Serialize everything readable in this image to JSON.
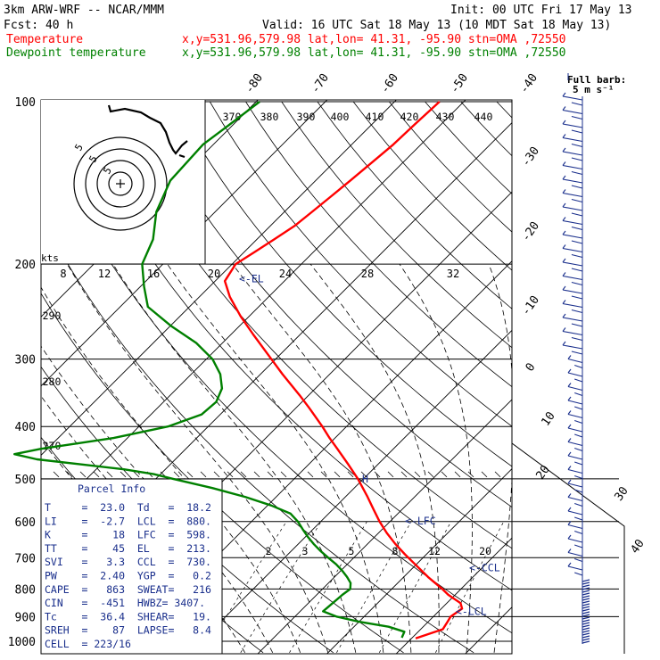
{
  "header": {
    "model": "3km ARW-WRF -- NCAR/MMM",
    "init": "Init: 00 UTC Fri 17 May 13",
    "fcst": "Fcst:   40 h",
    "valid": "Valid: 16 UTC Sat 18 May 13 (10 MDT Sat 18 May 13)"
  },
  "legend": [
    {
      "label": "Temperature",
      "location": "x,y=531.96,579.98   lat,lon= 41.31, -95.90   stn=OMA ,72550",
      "color": "#ff0000"
    },
    {
      "label": "Dewpoint temperature",
      "location": "x,y=531.96,579.98   lat,lon= 41.31, -95.90   stn=OMA ,72550",
      "color": "#008000"
    }
  ],
  "barb_key": {
    "line1": "Full barb:",
    "line2": "5 m s⁻¹"
  },
  "hodograph_axis_label": "kts",
  "hodograph_ring_labels": [
    "5",
    "5",
    "5"
  ],
  "parcel_info": {
    "title": "Parcel Info",
    "rows": [
      "T     =  23.0  Td   =  18.2",
      "LI    =  -2.7  LCL  =  880.",
      "K     =    18  LFC  =  598.",
      "TT    =    45  EL   =  213.",
      "SVI   =   3.3  CCL  =  730.",
      "PW    =  2.40  YGP  =   0.2",
      "CAPE  =   863  SWEAT=   216",
      "CIN   =  -451  HWBZ= 3407.",
      "Tc    =  36.4  SHEAR=   19.",
      "SREH  =    87  LAPSE=   8.4",
      "CELL  = 223/16"
    ]
  },
  "level_markers": [
    {
      "label": "<-EL",
      "p": 213
    },
    {
      "label": "<-LFC",
      "p": 598
    },
    {
      "label": "<-CCL",
      "p": 730
    },
    {
      "label": "<-LCL",
      "p": 880
    },
    {
      "label": "H",
      "p": 500
    }
  ],
  "colors": {
    "temperature": "#ff0000",
    "dewpoint": "#008000",
    "annotation": "#1a2f8c",
    "barb": "#1a2f8c"
  },
  "chart_data": {
    "type": "skew-t",
    "y_axis": "pressure (hPa)",
    "ylim": [
      1000,
      100
    ],
    "pressure_tick_labels": [
      "100",
      "200",
      "300",
      "400",
      "500",
      "600",
      "700",
      "800",
      "900",
      "1000"
    ],
    "isotherm_labels": [
      "-80",
      "-70",
      "-60",
      "-50",
      "-40",
      "-30",
      "-20",
      "-10",
      "0",
      "10",
      "20",
      "30",
      "40"
    ],
    "theta_labels_top": [
      "370",
      "380",
      "390",
      "400",
      "410",
      "420",
      "430",
      "440"
    ],
    "theta_labels_left": [
      "290",
      "280",
      "270"
    ],
    "hodo_speed_labels": [
      "8",
      "12",
      "16",
      "20",
      "24",
      "28",
      "32"
    ],
    "mixing_ratio_labels": [
      "2",
      "3",
      "5",
      "8",
      "12",
      "20"
    ],
    "series": [
      {
        "name": "Temperature",
        "p": [
          988,
          950,
          920,
          900,
          870,
          850,
          820,
          800,
          760,
          720,
          690,
          660,
          630,
          600,
          570,
          540,
          500,
          470,
          440,
          420,
          400,
          370,
          350,
          320,
          300,
          270,
          250,
          230,
          215,
          200,
          190,
          180,
          170,
          160,
          150,
          140,
          130,
          120,
          110,
          100
        ],
        "t": [
          20.6,
          23.2,
          22.8,
          22.5,
          23.0,
          22.0,
          19.0,
          17.3,
          13.5,
          9.8,
          6.9,
          4.0,
          1.2,
          -1.5,
          -4.1,
          -6.8,
          -10.8,
          -14.3,
          -18.1,
          -20.8,
          -23.5,
          -28.0,
          -31.3,
          -36.8,
          -40.6,
          -46.8,
          -51.2,
          -55.6,
          -58.6,
          -59.5,
          -58.5,
          -57.5,
          -56.5,
          -56.0,
          -55.5,
          -55.0,
          -54.5,
          -54.0,
          -53.8,
          -53.5
        ]
      },
      {
        "name": "Dewpoint temperature",
        "p": [
          985,
          960,
          940,
          920,
          900,
          880,
          850,
          820,
          800,
          780,
          760,
          740,
          720,
          700,
          680,
          660,
          640,
          620,
          600,
          580,
          560,
          540,
          520,
          500,
          490,
          480,
          470,
          460,
          450,
          440,
          420,
          400,
          380,
          360,
          340,
          320,
          300,
          280,
          260,
          240,
          220,
          200,
          180,
          160,
          140,
          120,
          110,
          100
        ],
        "t": [
          18.5,
          18.0,
          15.0,
          10.0,
          6.0,
          3.3,
          3.5,
          3.7,
          4.0,
          3.2,
          1.8,
          0.2,
          -1.6,
          -3.7,
          -5.8,
          -7.8,
          -9.7,
          -11.5,
          -13.3,
          -15.5,
          -19.5,
          -24.5,
          -30.5,
          -37.5,
          -41.0,
          -46.0,
          -53.0,
          -60.0,
          -64.0,
          -61.0,
          -52.0,
          -45.8,
          -42.7,
          -42.4,
          -43.5,
          -45.8,
          -49.1,
          -53.8,
          -60.0,
          -66.0,
          -69.5,
          -73.0,
          -75.0,
          -78.5,
          -81.0,
          -81.5,
          -80.5,
          -79.5
        ]
      }
    ]
  }
}
